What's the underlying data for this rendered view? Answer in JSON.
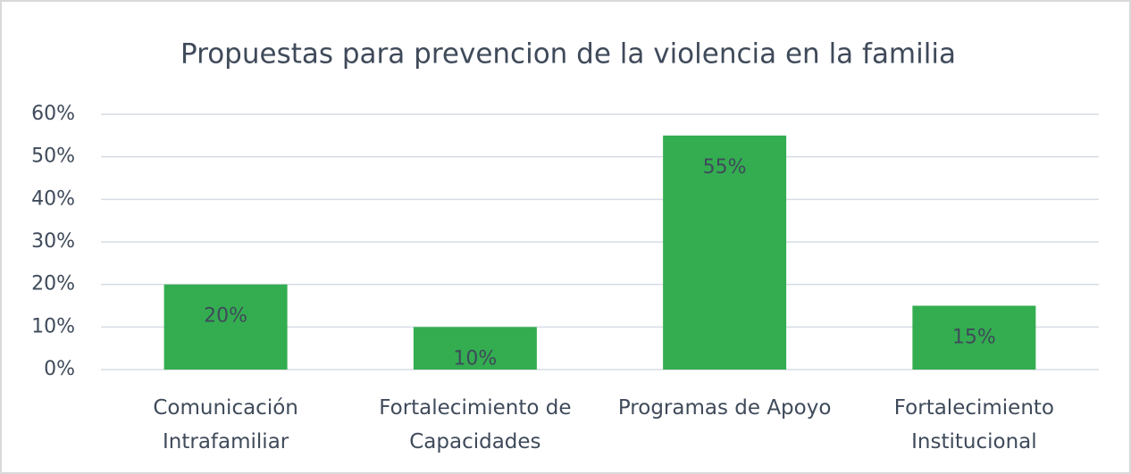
{
  "chart_data": {
    "type": "bar",
    "title": "Propuestas para prevencion de la violencia en la familia",
    "categories": [
      "Comunicación Intrafamiliar",
      "Fortalecimiento de Capacidades",
      "Programas de Apoyo",
      "Fortalecimiento Institucional"
    ],
    "values": [
      20,
      10,
      55,
      15
    ],
    "value_labels": [
      "20%",
      "10%",
      "55%",
      "15%"
    ],
    "color": "#33ad50",
    "ylim": [
      0,
      60
    ],
    "yticks": [
      {
        "value": 0,
        "label": "0%"
      },
      {
        "value": 10,
        "label": "10%"
      },
      {
        "value": 20,
        "label": "20%"
      },
      {
        "value": 30,
        "label": "30%"
      },
      {
        "value": 40,
        "label": "40%"
      },
      {
        "value": 50,
        "label": "50%"
      },
      {
        "value": 60,
        "label": "60%"
      }
    ],
    "grid": true
  }
}
